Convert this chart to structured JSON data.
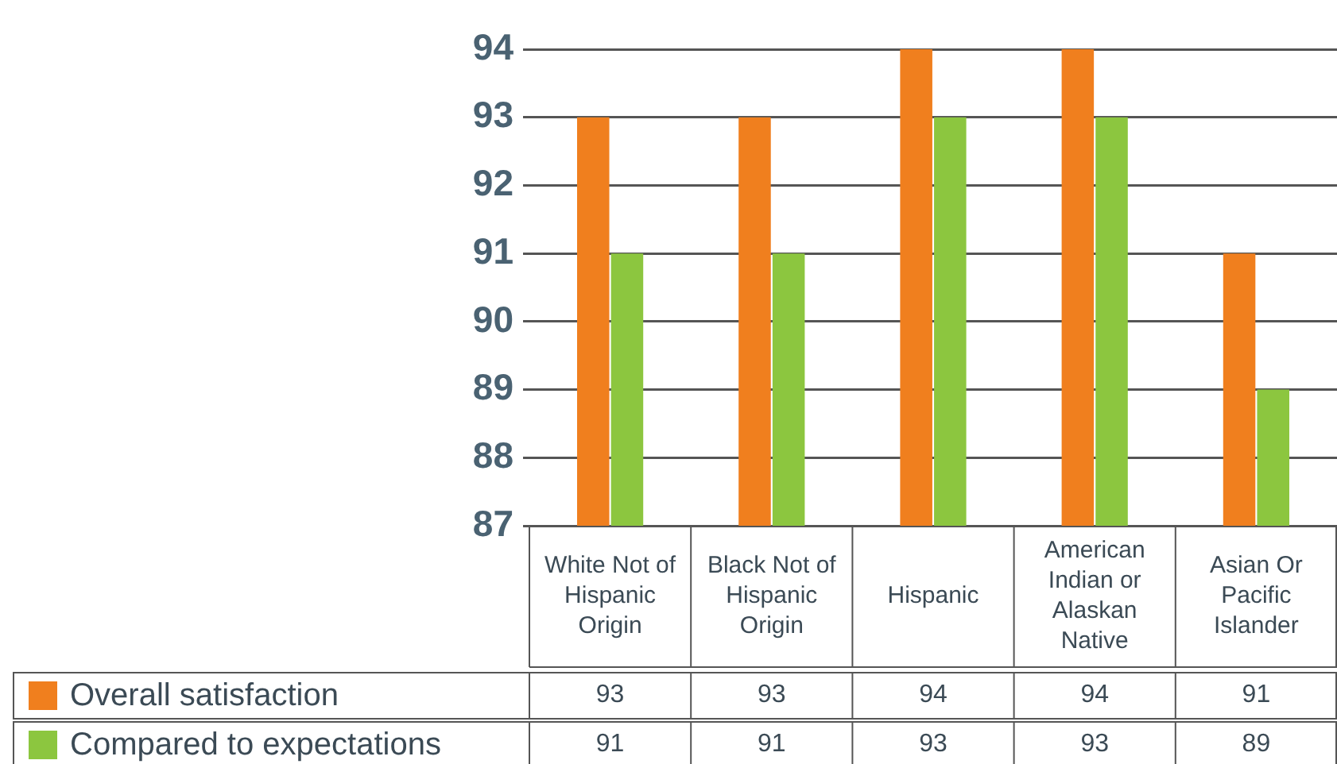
{
  "chart_data": {
    "type": "bar",
    "categories": [
      "White Not of Hispanic Origin",
      "Black Not of Hispanic Origin",
      "Hispanic",
      "American Indian or Alaskan Native",
      "Asian Or Pacific Islander"
    ],
    "series": [
      {
        "name": "Overall satisfaction",
        "color": "#f07f1e",
        "values": [
          93,
          93,
          94,
          94,
          91
        ]
      },
      {
        "name": "Compared to expectations",
        "color": "#8cc63f",
        "values": [
          91,
          91,
          93,
          93,
          89
        ]
      }
    ],
    "ylim": [
      87,
      94
    ],
    "yticks": [
      87,
      88,
      89,
      90,
      91,
      92,
      93,
      94
    ],
    "grid": "y",
    "legend": "bottom",
    "data_labels": true
  }
}
